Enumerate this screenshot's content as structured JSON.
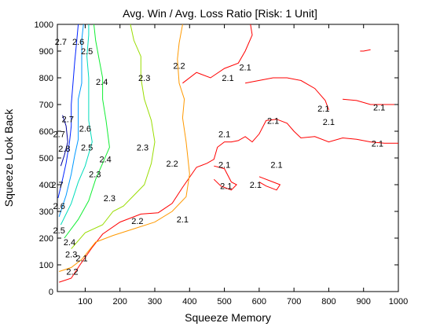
{
  "chart_data": {
    "type": "contour",
    "title": "Avg. Win / Avg. Loss Ratio [Risk: 1 Unit]",
    "xlabel": "Squeeze Memory",
    "ylabel": "Squeeze Look Back",
    "xlim": [
      20,
      1000
    ],
    "ylim": [
      0,
      1000
    ],
    "xticks": [
      100,
      200,
      300,
      400,
      500,
      600,
      700,
      800,
      900,
      1000
    ],
    "yticks": [
      0,
      100,
      200,
      300,
      400,
      500,
      600,
      700,
      800,
      900,
      1000
    ],
    "grid": false,
    "legend": "none",
    "levels": [
      {
        "value": 2.1,
        "color": "#ff0000"
      },
      {
        "value": 2.2,
        "color": "#ff9900"
      },
      {
        "value": 2.3,
        "color": "#99dd00"
      },
      {
        "value": 2.4,
        "color": "#11ee33"
      },
      {
        "value": 2.5,
        "color": "#00ddbb"
      },
      {
        "value": 2.6,
        "color": "#0099ff"
      },
      {
        "value": 2.7,
        "color": "#0022ff"
      },
      {
        "value": 2.8,
        "color": "#000099"
      }
    ],
    "contours": [
      {
        "level": "2.1",
        "points": [
          [
            25,
            35
          ],
          [
            60,
            50
          ],
          [
            85,
            100
          ],
          [
            120,
            165
          ],
          [
            150,
            215
          ],
          [
            200,
            260
          ],
          [
            260,
            290
          ],
          [
            310,
            295
          ],
          [
            350,
            330
          ],
          [
            380,
            390
          ],
          [
            420,
            465
          ],
          [
            450,
            480
          ],
          [
            470,
            495
          ],
          [
            480,
            540
          ],
          [
            500,
            560
          ],
          [
            520,
            560
          ],
          [
            540,
            565
          ],
          [
            560,
            580
          ],
          [
            580,
            560
          ],
          [
            600,
            590
          ],
          [
            620,
            640
          ],
          [
            650,
            645
          ],
          [
            680,
            630
          ],
          [
            700,
            600
          ],
          [
            720,
            575
          ],
          [
            760,
            580
          ],
          [
            800,
            560
          ],
          [
            840,
            575
          ],
          [
            880,
            570
          ],
          [
            920,
            560
          ],
          [
            960,
            555
          ],
          [
            1000,
            555
          ]
        ]
      },
      {
        "level": "2.1",
        "points": [
          [
            380,
            780
          ],
          [
            420,
            820
          ],
          [
            460,
            800
          ],
          [
            500,
            835
          ],
          [
            540,
            855
          ],
          [
            560,
            900
          ],
          [
            580,
            960
          ],
          [
            575,
            1000
          ]
        ]
      },
      {
        "level": "2.1",
        "points": [
          [
            470,
            470
          ],
          [
            500,
            460
          ],
          [
            520,
            410
          ],
          [
            535,
            400
          ],
          [
            520,
            380
          ],
          [
            490,
            395
          ],
          [
            470,
            420
          ]
        ]
      },
      {
        "level": "2.1",
        "points": [
          [
            600,
            430
          ],
          [
            640,
            410
          ],
          [
            660,
            400
          ],
          [
            650,
            380
          ],
          [
            620,
            395
          ],
          [
            600,
            410
          ]
        ]
      },
      {
        "level": "2.1",
        "points": [
          [
            560,
            780
          ],
          [
            600,
            790
          ],
          [
            640,
            800
          ],
          [
            680,
            800
          ],
          [
            720,
            790
          ],
          [
            760,
            760
          ],
          [
            790,
            715
          ],
          [
            800,
            680
          ]
        ]
      },
      {
        "level": "2.1",
        "points": [
          [
            840,
            720
          ],
          [
            880,
            715
          ],
          [
            920,
            700
          ],
          [
            960,
            700
          ],
          [
            1000,
            700
          ]
        ]
      },
      {
        "level": "2.1",
        "points": [
          [
            890,
            900
          ],
          [
            900,
            900
          ],
          [
            920,
            905
          ]
        ]
      },
      {
        "level": "2.2",
        "points": [
          [
            25,
            75
          ],
          [
            60,
            90
          ],
          [
            90,
            120
          ],
          [
            130,
            185
          ],
          [
            180,
            210
          ],
          [
            240,
            235
          ],
          [
            300,
            260
          ],
          [
            350,
            300
          ],
          [
            390,
            355
          ],
          [
            400,
            440
          ],
          [
            390,
            560
          ],
          [
            380,
            650
          ],
          [
            385,
            720
          ],
          [
            370,
            780
          ],
          [
            365,
            870
          ],
          [
            370,
            930
          ],
          [
            380,
            1000
          ]
        ]
      },
      {
        "level": "2.3",
        "points": [
          [
            60,
            160
          ],
          [
            100,
            220
          ],
          [
            150,
            250
          ],
          [
            180,
            300
          ],
          [
            210,
            320
          ],
          [
            240,
            360
          ],
          [
            270,
            400
          ],
          [
            290,
            480
          ],
          [
            300,
            560
          ],
          [
            290,
            640
          ],
          [
            270,
            720
          ],
          [
            260,
            800
          ],
          [
            260,
            880
          ],
          [
            240,
            940
          ],
          [
            230,
            1000
          ]
        ]
      },
      {
        "level": "2.4",
        "points": [
          [
            40,
            200
          ],
          [
            80,
            270
          ],
          [
            110,
            340
          ],
          [
            130,
            420
          ],
          [
            150,
            480
          ],
          [
            170,
            540
          ],
          [
            160,
            640
          ],
          [
            150,
            720
          ],
          [
            150,
            800
          ],
          [
            140,
            870
          ],
          [
            130,
            940
          ],
          [
            125,
            1000
          ]
        ]
      },
      {
        "level": "2.5",
        "points": [
          [
            30,
            250
          ],
          [
            60,
            330
          ],
          [
            80,
            410
          ],
          [
            100,
            470
          ],
          [
            120,
            560
          ],
          [
            110,
            640
          ],
          [
            110,
            720
          ],
          [
            110,
            800
          ],
          [
            105,
            880
          ],
          [
            110,
            960
          ],
          [
            110,
            1000
          ]
        ]
      },
      {
        "level": "2.6",
        "points": [
          [
            25,
            280
          ],
          [
            45,
            360
          ],
          [
            60,
            440
          ],
          [
            70,
            510
          ],
          [
            80,
            570
          ],
          [
            80,
            640
          ],
          [
            80,
            720
          ],
          [
            90,
            780
          ],
          [
            90,
            860
          ],
          [
            90,
            940
          ],
          [
            95,
            1000
          ]
        ]
      },
      {
        "level": "2.7",
        "points": [
          [
            22,
            350
          ],
          [
            35,
            420
          ],
          [
            45,
            480
          ],
          [
            55,
            560
          ],
          [
            60,
            620
          ],
          [
            60,
            700
          ],
          [
            65,
            780
          ],
          [
            70,
            860
          ],
          [
            75,
            930
          ],
          [
            80,
            1000
          ]
        ]
      },
      {
        "level": "2.8",
        "points": [
          [
            30,
            470
          ],
          [
            40,
            510
          ],
          [
            50,
            560
          ],
          [
            45,
            620
          ],
          [
            35,
            660
          ]
        ]
      }
    ],
    "labels": [
      {
        "text": "2.7",
        "x": 30,
        "y": 935
      },
      {
        "text": "2.6",
        "x": 80,
        "y": 935
      },
      {
        "text": "2.5",
        "x": 105,
        "y": 900
      },
      {
        "text": "2.4",
        "x": 148,
        "y": 785
      },
      {
        "text": "2.3",
        "x": 270,
        "y": 800
      },
      {
        "text": "2.2",
        "x": 370,
        "y": 845
      },
      {
        "text": "2.1",
        "x": 560,
        "y": 840
      },
      {
        "text": "2.1",
        "x": 510,
        "y": 800
      },
      {
        "text": "2.7",
        "x": 50,
        "y": 645
      },
      {
        "text": "2.6",
        "x": 100,
        "y": 610
      },
      {
        "text": "2.7",
        "x": 25,
        "y": 590
      },
      {
        "text": "2.8",
        "x": 40,
        "y": 535
      },
      {
        "text": "2.5",
        "x": 105,
        "y": 540
      },
      {
        "text": "2.4",
        "x": 158,
        "y": 495
      },
      {
        "text": "2.3",
        "x": 128,
        "y": 440
      },
      {
        "text": "2.3",
        "x": 265,
        "y": 540
      },
      {
        "text": "2.2",
        "x": 350,
        "y": 480
      },
      {
        "text": "2.7",
        "x": 20,
        "y": 400
      },
      {
        "text": "2.6",
        "x": 25,
        "y": 320
      },
      {
        "text": "2.3",
        "x": 170,
        "y": 350
      },
      {
        "text": "2.2",
        "x": 250,
        "y": 265
      },
      {
        "text": "2.1",
        "x": 380,
        "y": 270
      },
      {
        "text": "2.5",
        "x": 25,
        "y": 230
      },
      {
        "text": "2.4",
        "x": 55,
        "y": 185
      },
      {
        "text": "2.3",
        "x": 60,
        "y": 140
      },
      {
        "text": "2.1",
        "x": 90,
        "y": 125
      },
      {
        "text": "2.2",
        "x": 63,
        "y": 75
      },
      {
        "text": "2.1",
        "x": 500,
        "y": 590
      },
      {
        "text": "2.1",
        "x": 640,
        "y": 640
      },
      {
        "text": "2.1",
        "x": 500,
        "y": 475
      },
      {
        "text": "2.1",
        "x": 650,
        "y": 475
      },
      {
        "text": "2.1",
        "x": 505,
        "y": 395
      },
      {
        "text": "2.1",
        "x": 590,
        "y": 400
      },
      {
        "text": "2.1",
        "x": 785,
        "y": 685
      },
      {
        "text": "2.1",
        "x": 800,
        "y": 635
      },
      {
        "text": "2.1",
        "x": 945,
        "y": 690
      },
      {
        "text": "2.1",
        "x": 940,
        "y": 555
      }
    ]
  }
}
